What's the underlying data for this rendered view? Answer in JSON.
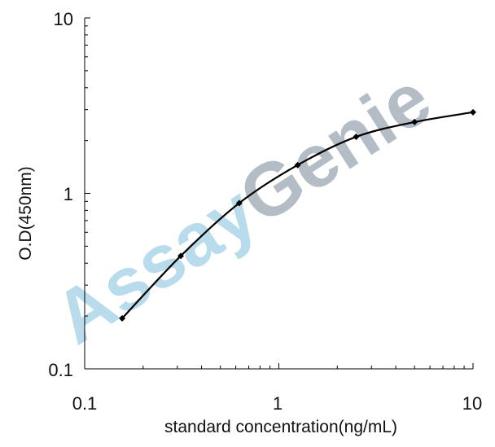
{
  "chart_data": {
    "type": "line",
    "xlabel": "standard concentration(ng/mL)",
    "ylabel": "O.D(450nm)",
    "x_scale": "log",
    "y_scale": "log",
    "xlim": [
      0.1,
      10
    ],
    "ylim": [
      0.1,
      10
    ],
    "x_ticks": [
      "0.1",
      "1",
      "10"
    ],
    "y_ticks": [
      "0.1",
      "1",
      "10"
    ],
    "grid": false,
    "series": [
      {
        "x": [
          0.156,
          0.3125,
          0.625,
          1.25,
          2.5,
          5,
          10
        ],
        "y": [
          0.194,
          0.44,
          0.88,
          1.45,
          2.1,
          2.55,
          2.9
        ]
      }
    ]
  },
  "watermark": {
    "part1": "Assay",
    "part2": "Genie",
    "color1": "#b9dced",
    "color2": "#b4bcc5"
  },
  "colors": {
    "line": "#000000",
    "axis": "#000000"
  }
}
